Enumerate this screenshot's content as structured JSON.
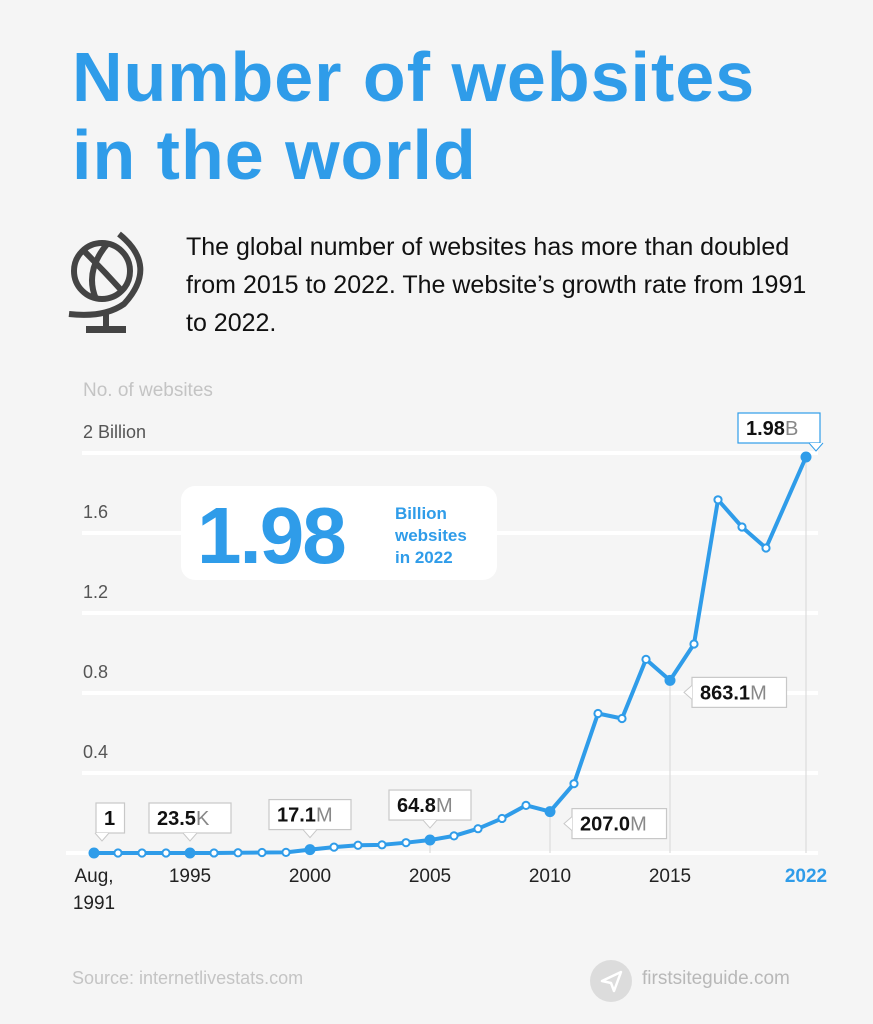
{
  "title_line1": "Number of websites",
  "title_line2": "in the world",
  "description": "The global number of websites has more than doubled from 2015 to 2022. The website’s growth rate from 1991 to 2022.",
  "callout": {
    "value": "1.98",
    "line1": "Billion",
    "line2": "websites",
    "line3": "in 2022"
  },
  "source": "Source: internetlivestats.com",
  "brand": "firstsiteguide.com",
  "colors": {
    "accent": "#2f9ce9",
    "text": "#111111",
    "muted": "#c4c4c4"
  },
  "chart_data": {
    "type": "line",
    "ylabel": "No. of websites",
    "ylim": [
      0,
      2
    ],
    "yticks": [
      {
        "v": 2,
        "label": "2 Billion"
      },
      {
        "v": 1.6,
        "label": "1.6"
      },
      {
        "v": 1.2,
        "label": "1.2"
      },
      {
        "v": 0.8,
        "label": "0.8"
      },
      {
        "v": 0.4,
        "label": "0.4"
      }
    ],
    "xticks": [
      {
        "x": 1991,
        "label": "Aug,",
        "label2": "1991"
      },
      {
        "x": 1995,
        "label": "1995"
      },
      {
        "x": 2000,
        "label": "2000"
      },
      {
        "x": 2005,
        "label": "2005"
      },
      {
        "x": 2010,
        "label": "2010"
      },
      {
        "x": 2015,
        "label": "2015"
      },
      {
        "x": 2022,
        "label": "2022",
        "highlight": true
      }
    ],
    "x": [
      1991,
      1992,
      1993,
      1994,
      1995,
      1996,
      1997,
      1998,
      1999,
      2000,
      2001,
      2002,
      2003,
      2004,
      2005,
      2006,
      2007,
      2008,
      2009,
      2010,
      2011,
      2012,
      2013,
      2014,
      2015,
      2016,
      2017,
      2018,
      2019,
      2022
    ],
    "values": [
      1e-09,
      1e-08,
      1.3e-07,
      2.7e-06,
      2.35e-05,
      0.00026,
      0.0011,
      0.0024,
      0.0032,
      0.0171,
      0.0293,
      0.0388,
      0.0409,
      0.0516,
      0.0648,
      0.0855,
      0.1215,
      0.1727,
      0.2382,
      0.207,
      0.3466,
      0.6976,
      0.6726,
      0.968,
      0.8631,
      1.045,
      1.766,
      1.63,
      1.525,
      1.98
    ],
    "annotations": [
      {
        "x": 1991,
        "bold": "1",
        "unit": ""
      },
      {
        "x": 1995,
        "bold": "23.5",
        "unit": "K"
      },
      {
        "x": 2000,
        "bold": "17.1",
        "unit": "M"
      },
      {
        "x": 2005,
        "bold": "64.8",
        "unit": "M"
      },
      {
        "x": 2010,
        "bold": "207.0",
        "unit": "M",
        "side": "right"
      },
      {
        "x": 2015,
        "bold": "863.1",
        "unit": "M",
        "side": "right"
      },
      {
        "x": 2022,
        "bold": "1.98",
        "unit": "B",
        "accent": true
      }
    ]
  }
}
